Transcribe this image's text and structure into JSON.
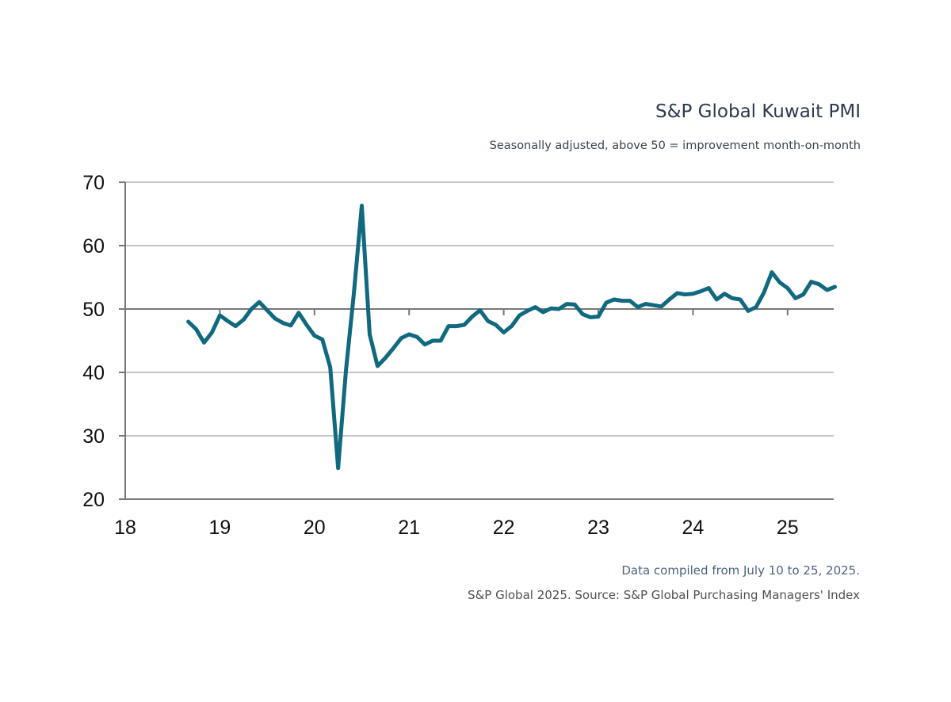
{
  "chart_data": {
    "type": "line",
    "title": "S&P Global Kuwait PMI",
    "subtitle": "Seasonally adjusted, above 50 = improvement month-on-month",
    "xlabel": "",
    "ylabel": "",
    "ylim": [
      20,
      70
    ],
    "yticks": [
      "70",
      "60",
      "50",
      "40",
      "30",
      "20"
    ],
    "xticks": [
      "18",
      "19",
      "20",
      "21",
      "22",
      "23",
      "24",
      "25"
    ],
    "xlim": [
      "2018-01",
      "2025-08"
    ],
    "reference_line": 50,
    "grid": "horizontal",
    "line_color": "#11697f",
    "x": [
      "2018-09",
      "2018-10",
      "2018-11",
      "2018-12",
      "2019-01",
      "2019-02",
      "2019-03",
      "2019-04",
      "2019-05",
      "2019-06",
      "2019-07",
      "2019-08",
      "2019-09",
      "2019-10",
      "2019-11",
      "2019-12",
      "2020-01",
      "2020-02",
      "2020-03",
      "2020-04",
      "2020-05",
      "2020-06",
      "2020-07",
      "2020-08",
      "2020-09",
      "2020-10",
      "2020-11",
      "2020-12",
      "2021-01",
      "2021-02",
      "2021-03",
      "2021-04",
      "2021-05",
      "2021-06",
      "2021-07",
      "2021-08",
      "2021-09",
      "2021-10",
      "2021-11",
      "2021-12",
      "2022-01",
      "2022-02",
      "2022-03",
      "2022-04",
      "2022-05",
      "2022-06",
      "2022-07",
      "2022-08",
      "2022-09",
      "2022-10",
      "2022-11",
      "2022-12",
      "2023-01",
      "2023-02",
      "2023-03",
      "2023-04",
      "2023-05",
      "2023-06",
      "2023-07",
      "2023-08",
      "2023-09",
      "2023-10",
      "2023-11",
      "2023-12",
      "2024-01",
      "2024-02",
      "2024-03",
      "2024-04",
      "2024-05",
      "2024-06",
      "2024-07",
      "2024-08",
      "2024-09",
      "2024-10",
      "2024-11",
      "2024-12",
      "2025-01",
      "2025-02",
      "2025-03",
      "2025-04",
      "2025-05",
      "2025-06",
      "2025-07"
    ],
    "values": [
      48.0,
      46.8,
      44.7,
      46.3,
      49.0,
      48.1,
      47.3,
      48.3,
      50.0,
      51.1,
      49.8,
      48.5,
      47.8,
      47.4,
      49.4,
      47.5,
      45.8,
      45.2,
      40.8,
      24.9,
      40.4,
      52.5,
      66.3,
      46.0,
      41.0,
      42.3,
      43.8,
      45.4,
      46.0,
      45.6,
      44.4,
      45.0,
      45.0,
      47.3,
      47.3,
      47.5,
      48.8,
      49.8,
      48.1,
      47.5,
      46.3,
      47.3,
      49.0,
      49.7,
      50.3,
      49.5,
      50.1,
      50.0,
      50.8,
      50.7,
      49.2,
      48.7,
      48.8,
      51.0,
      51.5,
      51.3,
      51.3,
      50.3,
      50.8,
      50.6,
      50.4,
      51.5,
      52.5,
      52.3,
      52.4,
      52.8,
      53.3,
      51.5,
      52.4,
      51.7,
      51.5,
      49.7,
      50.3,
      52.6,
      55.8,
      54.2,
      53.3,
      51.7,
      52.3,
      54.3,
      53.9,
      53.0,
      53.5
    ]
  },
  "footer": {
    "note": "Data compiled from July 10 to 25, 2025.",
    "source": "S&P Global 2025. Source: S&P Global Purchasing Managers' Index"
  }
}
